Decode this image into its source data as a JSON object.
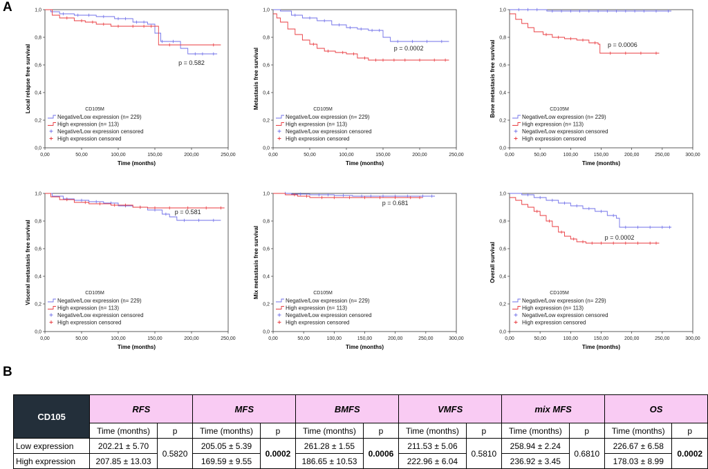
{
  "panel_labels": {
    "a": "A",
    "b": "B"
  },
  "legend": {
    "title": "CD105M",
    "items": [
      "Negative/Low expression  (n= 229)",
      "High expression (n= 113)",
      "Negative/Low expression censored",
      "High expression censored"
    ]
  },
  "colors": {
    "low": "#6f6fe8",
    "high": "#e8383d"
  },
  "chart_data": [
    {
      "type": "line",
      "id": "rfs",
      "ylabel": "Local relapse free survival",
      "xlabel": "Time (months)",
      "xlim": [
        0,
        250
      ],
      "ylim": [
        0,
        1
      ],
      "xticks": [
        "0,00",
        "50,00",
        "100,00",
        "150,00",
        "200,00",
        "250,00"
      ],
      "yticks": [
        "0,0",
        "0,2",
        "0,4",
        "0,6",
        "0,8",
        "1,0"
      ],
      "p_text": "p = 0.582",
      "p_pos": [
        200,
        0.6
      ],
      "series": [
        {
          "name": "Negative/Low expression",
          "color": "#6f6fe8",
          "x": [
            0,
            8,
            20,
            40,
            70,
            95,
            120,
            140,
            150,
            158,
            185,
            195,
            235
          ],
          "y": [
            1.0,
            0.985,
            0.97,
            0.96,
            0.95,
            0.935,
            0.91,
            0.895,
            0.83,
            0.77,
            0.72,
            0.68,
            0.68
          ],
          "censored_x": [
            25,
            45,
            60,
            80,
            100,
            110,
            125,
            135,
            160,
            175,
            205,
            215,
            230
          ]
        },
        {
          "name": "High expression",
          "color": "#e8383d",
          "x": [
            0,
            10,
            20,
            40,
            55,
            70,
            90,
            110,
            150,
            155,
            240
          ],
          "y": [
            1.0,
            0.96,
            0.94,
            0.92,
            0.91,
            0.895,
            0.88,
            0.88,
            0.88,
            0.745,
            0.745
          ],
          "censored_x": [
            30,
            50,
            65,
            80,
            100,
            120,
            135,
            145,
            170,
            230
          ]
        }
      ]
    },
    {
      "type": "line",
      "id": "mfs",
      "ylabel": "Metastasis free survival",
      "xlabel": "Time (months)",
      "xlim": [
        0,
        250
      ],
      "ylim": [
        0,
        1
      ],
      "xticks": [
        "0,00",
        "50,00",
        "100,00",
        "150,00",
        "200,00",
        "250,00"
      ],
      "yticks": [
        "0,0",
        "0,2",
        "0,4",
        "0,6",
        "0,8",
        "1,0"
      ],
      "p_text": "p = 0.0002",
      "p_pos": [
        185,
        0.705
      ],
      "series": [
        {
          "name": "Negative/Low expression",
          "color": "#6f6fe8",
          "x": [
            0,
            10,
            25,
            40,
            60,
            80,
            100,
            115,
            130,
            150,
            160,
            240
          ],
          "y": [
            1.0,
            0.99,
            0.96,
            0.94,
            0.92,
            0.89,
            0.87,
            0.86,
            0.85,
            0.8,
            0.77,
            0.77
          ],
          "censored_x": [
            30,
            50,
            70,
            90,
            105,
            120,
            135,
            145,
            170,
            190,
            210,
            230
          ]
        },
        {
          "name": "High expression",
          "color": "#e8383d",
          "x": [
            0,
            5,
            10,
            20,
            30,
            40,
            50,
            60,
            70,
            85,
            100,
            115,
            130,
            240
          ],
          "y": [
            0.97,
            0.94,
            0.91,
            0.86,
            0.82,
            0.78,
            0.75,
            0.72,
            0.7,
            0.69,
            0.68,
            0.65,
            0.635,
            0.635
          ],
          "censored_x": [
            55,
            75,
            95,
            110,
            125,
            140,
            150,
            165,
            180,
            200,
            220,
            235
          ]
        }
      ]
    },
    {
      "type": "line",
      "id": "bmfs",
      "ylabel": "Bone metastasis free survival",
      "xlabel": "Time (months)",
      "xlim": [
        0,
        300
      ],
      "ylim": [
        0,
        1
      ],
      "xticks": [
        "0,00",
        "50,00",
        "100,00",
        "150,00",
        "200,00",
        "250,00",
        "300,00"
      ],
      "yticks": [
        "0,0",
        "0,2",
        "0,4",
        "0,6",
        "0,8",
        "1,0"
      ],
      "p_text": "p = 0.0006",
      "p_pos": [
        185,
        0.73
      ],
      "series": [
        {
          "name": "Negative/Low expression",
          "color": "#6f6fe8",
          "x": [
            0,
            60,
            61,
            265
          ],
          "y": [
            1.0,
            1.0,
            0.99,
            0.99
          ],
          "censored_x": [
            15,
            30,
            45,
            70,
            85,
            100,
            115,
            130,
            145,
            160,
            175,
            190,
            205,
            220,
            240,
            260
          ]
        },
        {
          "name": "High expression",
          "color": "#e8383d",
          "x": [
            0,
            10,
            20,
            30,
            40,
            55,
            70,
            90,
            110,
            130,
            145,
            148,
            245
          ],
          "y": [
            0.97,
            0.93,
            0.9,
            0.87,
            0.84,
            0.82,
            0.8,
            0.79,
            0.78,
            0.76,
            0.75,
            0.685,
            0.685
          ],
          "censored_x": [
            60,
            80,
            100,
            120,
            140,
            165,
            190,
            215,
            240
          ]
        }
      ]
    },
    {
      "type": "line",
      "id": "vmfs",
      "ylabel": "Visceral metastasis free survival",
      "xlabel": "Time (months)",
      "xlim": [
        0,
        250
      ],
      "ylim": [
        0,
        1
      ],
      "xticks": [
        "0,00",
        "50,00",
        "100,00",
        "150,00",
        "200,00",
        "250,00"
      ],
      "yticks": [
        "0,0",
        "0,2",
        "0,4",
        "0,6",
        "0,8",
        "1,0"
      ],
      "p_text": "p = 0.581",
      "p_pos": [
        195,
        0.85
      ],
      "series": [
        {
          "name": "Negative/Low expression",
          "color": "#6f6fe8",
          "x": [
            0,
            10,
            25,
            40,
            60,
            80,
            100,
            120,
            140,
            160,
            170,
            180,
            240
          ],
          "y": [
            1.0,
            0.98,
            0.96,
            0.95,
            0.94,
            0.93,
            0.91,
            0.9,
            0.88,
            0.85,
            0.83,
            0.805,
            0.805
          ],
          "censored_x": [
            30,
            50,
            70,
            90,
            110,
            130,
            150,
            165,
            190,
            210,
            230
          ]
        },
        {
          "name": "High expression",
          "color": "#e8383d",
          "x": [
            0,
            8,
            20,
            40,
            60,
            90,
            120,
            140,
            245
          ],
          "y": [
            1.0,
            0.975,
            0.955,
            0.935,
            0.925,
            0.915,
            0.9,
            0.895,
            0.895
          ],
          "censored_x": [
            30,
            55,
            75,
            95,
            110,
            130,
            150,
            170,
            195,
            220,
            240
          ]
        }
      ]
    },
    {
      "type": "line",
      "id": "mixmfs",
      "ylabel": "Mix metastasis free survival",
      "xlabel": "Time (months)",
      "xlim": [
        0,
        300
      ],
      "ylim": [
        0,
        1
      ],
      "xticks": [
        "0,00",
        "50,00",
        "100,00",
        "150,00",
        "200,00",
        "250,00",
        "300,00"
      ],
      "yticks": [
        "0,0",
        "0,2",
        "0,4",
        "0,6",
        "0,8",
        "1,0"
      ],
      "p_text": "p = 0.681",
      "p_pos": [
        200,
        0.915
      ],
      "series": [
        {
          "name": "Negative/Low expression",
          "color": "#6f6fe8",
          "x": [
            0,
            30,
            60,
            100,
            130,
            265
          ],
          "y": [
            1.0,
            0.995,
            0.99,
            0.985,
            0.98,
            0.98
          ],
          "censored_x": [
            20,
            45,
            75,
            90,
            115,
            145,
            160,
            180,
            200,
            220,
            245,
            260
          ]
        },
        {
          "name": "High expression",
          "color": "#e8383d",
          "x": [
            0,
            20,
            40,
            60,
            245
          ],
          "y": [
            1.0,
            0.99,
            0.98,
            0.97,
            0.97
          ],
          "censored_x": [
            35,
            55,
            80,
            100,
            125,
            150,
            175,
            200,
            225,
            240
          ]
        }
      ]
    },
    {
      "type": "line",
      "id": "os",
      "ylabel": "Overall survival",
      "xlabel": "Time (months)",
      "xlim": [
        0,
        300
      ],
      "ylim": [
        0,
        1
      ],
      "xticks": [
        "0,00",
        "50,00",
        "100,00",
        "150,00",
        "200,00",
        "250,00",
        "300,00"
      ],
      "yticks": [
        "0,0",
        "0,2",
        "0,4",
        "0,6",
        "0,8",
        "1,0"
      ],
      "p_text": "p = 0.0002",
      "p_pos": [
        180,
        0.665
      ],
      "series": [
        {
          "name": "Negative/Low expression",
          "color": "#6f6fe8",
          "x": [
            0,
            20,
            40,
            60,
            80,
            100,
            120,
            140,
            160,
            175,
            180,
            265
          ],
          "y": [
            1.0,
            0.99,
            0.97,
            0.95,
            0.93,
            0.91,
            0.89,
            0.87,
            0.84,
            0.82,
            0.755,
            0.755
          ],
          "censored_x": [
            30,
            50,
            70,
            90,
            110,
            130,
            150,
            170,
            190,
            210,
            230,
            250,
            262
          ]
        },
        {
          "name": "High expression",
          "color": "#e8383d",
          "x": [
            0,
            10,
            20,
            30,
            40,
            50,
            60,
            70,
            80,
            90,
            100,
            110,
            125,
            245
          ],
          "y": [
            0.97,
            0.95,
            0.92,
            0.9,
            0.87,
            0.84,
            0.8,
            0.76,
            0.72,
            0.69,
            0.67,
            0.65,
            0.64,
            0.64
          ],
          "censored_x": [
            45,
            65,
            85,
            105,
            120,
            135,
            150,
            170,
            190,
            210,
            230,
            240
          ]
        }
      ]
    }
  ],
  "table": {
    "corner": "CD105",
    "groups": [
      "RFS",
      "MFS",
      "BMFS",
      "VMFS",
      "mix MFS",
      "OS"
    ],
    "sub_time": "Time (months)",
    "sub_p": "p",
    "rows": [
      {
        "label": "Low expression",
        "values": [
          "202.21 ± 5.70",
          "205.05 ± 5.39",
          "261.28 ± 1.55",
          "211.53 ± 5.06",
          "258.94 ± 2.24",
          "226.67 ± 6.58"
        ]
      },
      {
        "label": "High expression",
        "values": [
          "207.85 ± 13.03",
          "169.59 ± 9.55",
          "186.65 ± 10.53",
          "222.96 ± 6.04",
          "236.92 ± 3.45",
          "178.03 ± 8.99"
        ]
      }
    ],
    "p_values": [
      "0.5820",
      "0.0002",
      "0.0006",
      "0.5810",
      "0.6810",
      "0.0002"
    ],
    "p_bold": [
      false,
      true,
      true,
      false,
      false,
      true
    ]
  }
}
